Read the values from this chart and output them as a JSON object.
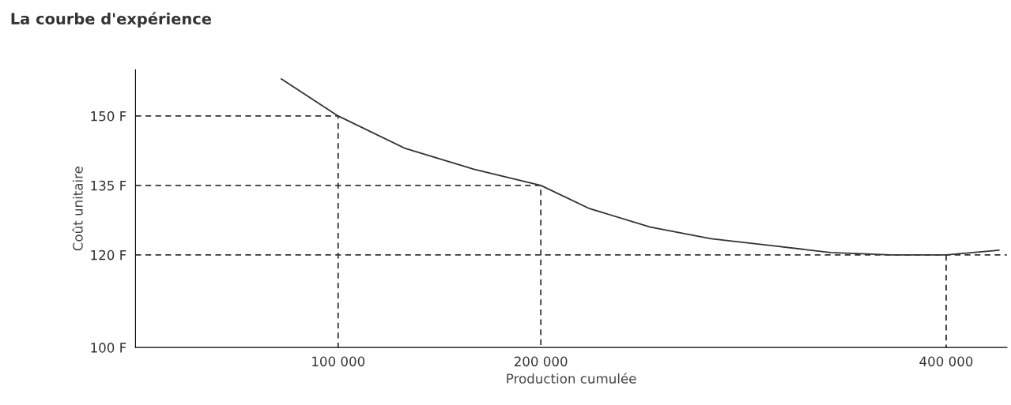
{
  "chart_data": {
    "type": "line",
    "title": "La courbe d'expérience",
    "xlabel": "Production cumulée",
    "ylabel": "Coût unitaire",
    "xlim": [
      0,
      430000
    ],
    "ylim": [
      100,
      160
    ],
    "xticks": [
      {
        "value": 100000,
        "label": "100 000"
      },
      {
        "value": 200000,
        "label": "200 000"
      },
      {
        "value": 400000,
        "label": "400 000"
      }
    ],
    "yticks": [
      {
        "value": 100,
        "label": "100 F"
      },
      {
        "value": 120,
        "label": "120 F"
      },
      {
        "value": 135,
        "label": "135 F"
      },
      {
        "value": 150,
        "label": "150 F"
      }
    ],
    "grid": false,
    "legend": false,
    "marker": "none",
    "series": [
      {
        "color": "#333333",
        "line_style": "solid",
        "x": [
          72000,
          100000,
          133000,
          167000,
          200000,
          224000,
          254000,
          284000,
          314000,
          343000,
          373000,
          400000,
          426000
        ],
        "values": [
          158,
          150,
          143,
          138.5,
          135,
          130,
          126,
          123.5,
          122,
          120.5,
          120,
          120,
          121
        ]
      },
      {
        "color": "#333333",
        "line_style": "dashed",
        "x": [
          0,
          100000,
          100000
        ],
        "values": [
          150,
          150,
          100
        ]
      },
      {
        "color": "#333333",
        "line_style": "dashed",
        "x": [
          0,
          200000,
          200000
        ],
        "values": [
          135,
          135,
          100
        ]
      },
      {
        "color": "#333333",
        "line_style": "dashed",
        "x": [
          0,
          430000
        ],
        "values": [
          120,
          120
        ]
      },
      {
        "color": "#333333",
        "line_style": "dashed",
        "x": [
          400000,
          400000
        ],
        "values": [
          120,
          100
        ]
      }
    ]
  }
}
